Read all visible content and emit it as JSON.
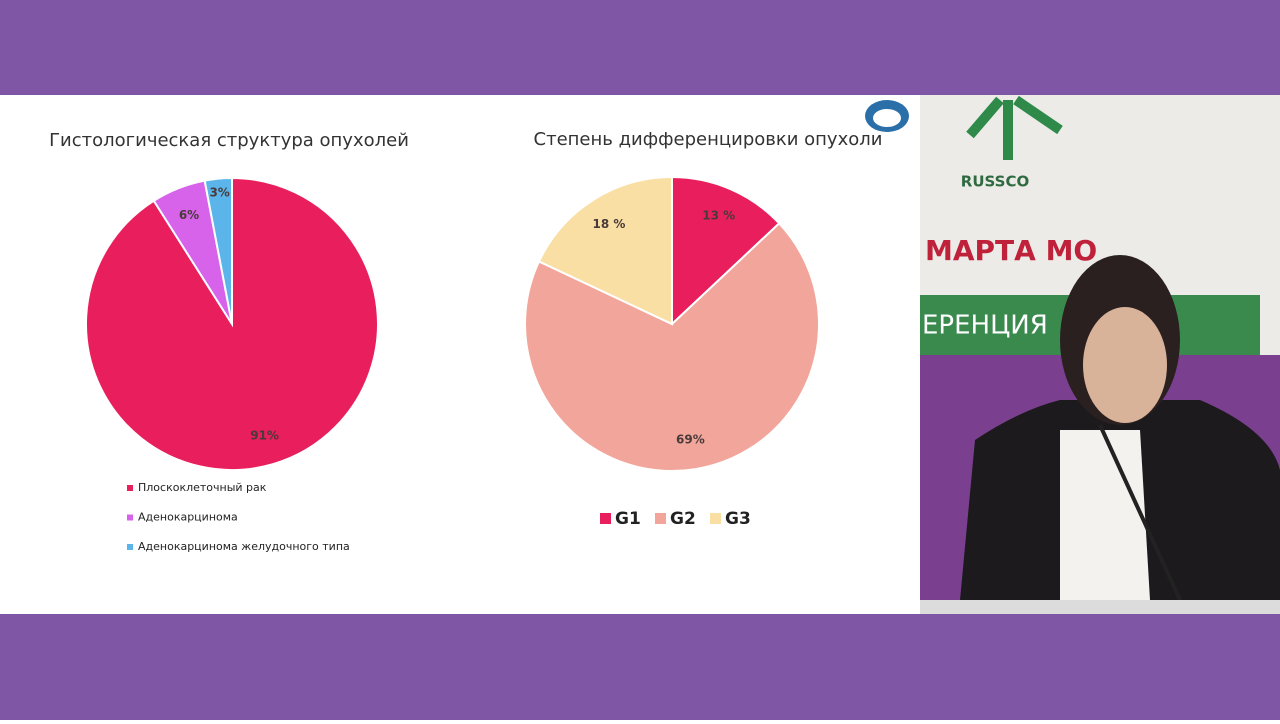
{
  "chart_data": [
    {
      "type": "pie",
      "title": "Гистологическая структура опухолей",
      "categories": [
        "Плоскоклеточный рак",
        "Аденокарцинома",
        "Аденокарцинома желудочного типа"
      ],
      "values": [
        91,
        6,
        3
      ],
      "value_labels": [
        "91%",
        "6%",
        "3%"
      ],
      "colors": [
        "#e91e5c",
        "#d763ea",
        "#5bb5ea"
      ],
      "legend": "bottom-vertical"
    },
    {
      "type": "pie",
      "title": "Степень дифференцировки опухоли",
      "categories": [
        "G1",
        "G2",
        "G3"
      ],
      "values": [
        13,
        69,
        18
      ],
      "value_labels": [
        "13 %",
        "69%",
        "18 %"
      ],
      "colors": [
        "#e91e5c",
        "#f2a69b",
        "#f9dfa3"
      ],
      "legend": "bottom-horizontal"
    }
  ],
  "video": {
    "texts": [
      "RUSSCO",
      "МАРТА МО",
      "ЕРЕНЦИЯ"
    ]
  }
}
